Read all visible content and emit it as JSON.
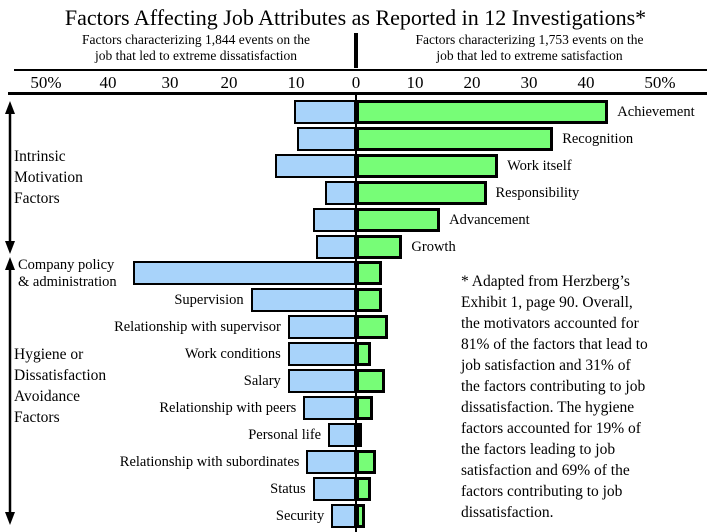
{
  "chart_data": {
    "type": "bar",
    "orientation": "horizontal-diverging",
    "title": "Factors Affecting Job Attributes as Reported in 12 Investigations*",
    "left_header": "Factors characterizing 1,844 events on the\njob that led to extreme dissatisfaction",
    "right_header": "Factors characterizing 1,753 events on the\njob that led to extreme satisfaction",
    "axis_unit": "percent",
    "xlim_left": 50,
    "xlim_right": 50,
    "axis_ticks": [
      "50%",
      "40",
      "30",
      "20",
      "10",
      "0",
      "10",
      "20",
      "30",
      "40",
      "50%"
    ],
    "legend": {
      "dissatisfaction_color": "#A8D3FA",
      "satisfaction_color": "#77FD77"
    },
    "groups": [
      {
        "label": "Intrinsic Motivation Factors",
        "display": "Intrinsic\nMotivation\nFactors"
      },
      {
        "label": "Hygiene or Dissatisfaction Avoidance Factors",
        "display": "Hygiene or\nDissatisfaction\nAvoidance\nFactors"
      }
    ],
    "factors": [
      {
        "label": "Achievement",
        "group": 0,
        "dissatisfaction": 10,
        "satisfaction": 43.5
      },
      {
        "label": "Recognition",
        "group": 0,
        "dissatisfaction": 9.5,
        "satisfaction": 34
      },
      {
        "label": "Work itself",
        "group": 0,
        "dissatisfaction": 13,
        "satisfaction": 24.5
      },
      {
        "label": "Responsibility",
        "group": 0,
        "dissatisfaction": 5,
        "satisfaction": 22.5
      },
      {
        "label": "Advancement",
        "group": 0,
        "dissatisfaction": 7,
        "satisfaction": 14.5
      },
      {
        "label": "Growth",
        "group": 0,
        "dissatisfaction": 6.5,
        "satisfaction": 8
      },
      {
        "label": "Company policy & administration",
        "group": 1,
        "display": "Company policy\n& administration",
        "dissatisfaction": 36,
        "satisfaction": 4.5
      },
      {
        "label": "Supervision",
        "group": 1,
        "dissatisfaction": 17,
        "satisfaction": 4.5
      },
      {
        "label": "Relationship with supervisor",
        "group": 1,
        "dissatisfaction": 11,
        "satisfaction": 5.5
      },
      {
        "label": "Work conditions",
        "group": 1,
        "dissatisfaction": 11,
        "satisfaction": 2.5
      },
      {
        "label": "Salary",
        "group": 1,
        "dissatisfaction": 11,
        "satisfaction": 5
      },
      {
        "label": "Relationship with peers",
        "group": 1,
        "dissatisfaction": 8.5,
        "satisfaction": 3
      },
      {
        "label": "Personal life",
        "group": 1,
        "dissatisfaction": 4.5,
        "satisfaction": 1
      },
      {
        "label": "Relationship with subordinates",
        "group": 1,
        "dissatisfaction": 8,
        "satisfaction": 3.5
      },
      {
        "label": "Status",
        "group": 1,
        "dissatisfaction": 7,
        "satisfaction": 2.5
      },
      {
        "label": "Security",
        "group": 1,
        "dissatisfaction": 4,
        "satisfaction": 1.5
      }
    ]
  },
  "annotation": "* Adapted from Herzberg’s\nExhibit 1, page 90. Overall,\nthe motivators accounted for\n81% of the factors that lead to\njob satisfaction and 31% of\nthe factors contributing to job\ndissatisfaction.  The hygiene\nfactors accounted for 19% of\nthe factors leading to job\nsatisfaction and 69% of the\nfactors contributing to job\ndissatisfaction."
}
